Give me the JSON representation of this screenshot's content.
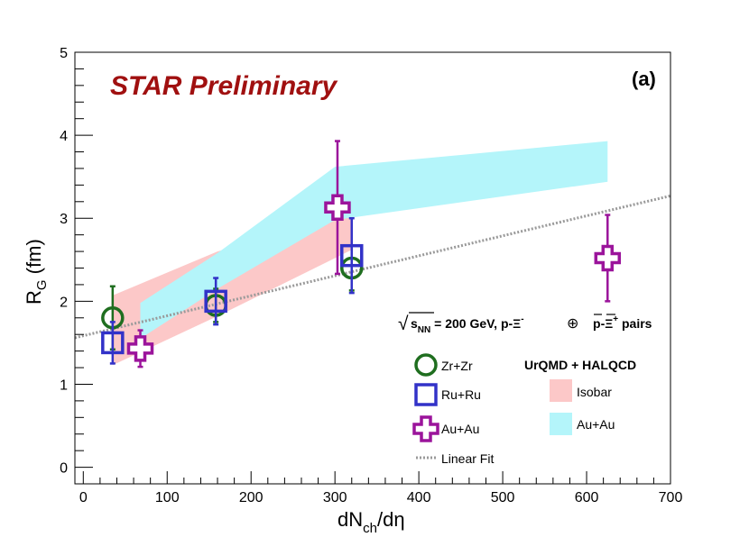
{
  "chart_data": {
    "type": "scatter",
    "prelim_label": "STAR Preliminary",
    "panel_label": "(a)",
    "xlabel_main": "dN",
    "xlabel_sub": "ch",
    "xlabel_tail": "/dη",
    "ylabel_main": "R",
    "ylabel_sub": "G",
    "ylabel_tail": " (fm)",
    "xlim": [
      -10,
      700
    ],
    "ylim": [
      -0.2,
      5
    ],
    "x_ticks": [
      0,
      100,
      200,
      300,
      400,
      500,
      600,
      700
    ],
    "x_tick_labels": [
      "0",
      "100",
      "200",
      "300",
      "400",
      "500",
      "600",
      "700"
    ],
    "y_ticks": [
      0,
      1,
      2,
      3,
      4,
      5
    ],
    "y_tick_labels": [
      "0",
      "1",
      "2",
      "3",
      "4",
      "5"
    ],
    "energy_label": {
      "sqrt": "√",
      "s": "s",
      "sub": "NN",
      "rest": " = 200 GeV, p-Ξ",
      "sup1": "-",
      "oplus": "⊕",
      "pbar": "p",
      "dash": "-",
      "xibar": "Ξ",
      "sup2": "+",
      "pairs": " pairs"
    },
    "model_title": "UrQMD + HALQCD",
    "series": [
      {
        "name": "Zr+Zr",
        "marker": "circle",
        "color": "#1f6e1f",
        "points": [
          {
            "x": 35,
            "y": 1.8,
            "yerr": 0.38
          },
          {
            "x": 158,
            "y": 1.95,
            "yerr": 0.2
          },
          {
            "x": 320,
            "y": 2.4,
            "yerr": 0.27
          }
        ]
      },
      {
        "name": "Ru+Ru",
        "marker": "square",
        "color": "#3232c8",
        "points": [
          {
            "x": 35,
            "y": 1.5,
            "yerr": 0.25
          },
          {
            "x": 158,
            "y": 2.0,
            "yerr": 0.28
          },
          {
            "x": 320,
            "y": 2.55,
            "yerr": 0.45
          }
        ]
      },
      {
        "name": "Au+Au",
        "marker": "cross",
        "color": "#9b149b",
        "points": [
          {
            "x": 68,
            "y": 1.43,
            "yerr": 0.22
          },
          {
            "x": 303,
            "y": 3.13,
            "yerr": 0.8
          },
          {
            "x": 625,
            "y": 2.52,
            "yerr": 0.52
          }
        ]
      }
    ],
    "bands": [
      {
        "name": "Isobar",
        "color": "#fcc8c8",
        "polygon": [
          [
            35,
            1.23
          ],
          [
            160,
            1.82
          ],
          [
            320,
            2.62
          ],
          [
            320,
            3.05
          ],
          [
            160,
            2.6
          ],
          [
            35,
            2.07
          ]
        ]
      },
      {
        "name": "Au+Au",
        "color": "#b4f5fa",
        "polygon": [
          [
            68,
            1.55
          ],
          [
            160,
            2.15
          ],
          [
            300,
            2.98
          ],
          [
            625,
            3.44
          ],
          [
            625,
            3.93
          ],
          [
            300,
            3.62
          ],
          [
            160,
            2.58
          ],
          [
            68,
            1.98
          ]
        ]
      }
    ],
    "fit": {
      "name": "Linear Fit",
      "color": "#9a9a9a",
      "x": [
        -10,
        700
      ],
      "y": [
        1.56,
        3.27
      ]
    }
  }
}
